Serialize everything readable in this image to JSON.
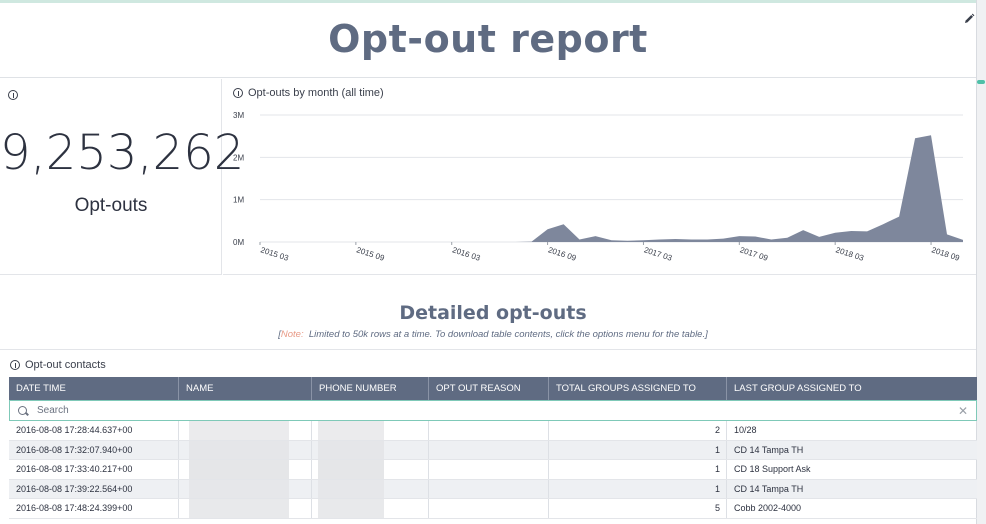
{
  "header": {
    "title": "Opt-out report"
  },
  "kpi": {
    "value": "9,253,262",
    "label": "Opt-outs"
  },
  "chart": {
    "title": "Opt-outs by month (all time)",
    "y_ticks": [
      "3M",
      "2M",
      "1M",
      "0M"
    ],
    "x_ticks": [
      "2015 03",
      "2015 09",
      "2016 03",
      "2016 09",
      "2017 03",
      "2017 09",
      "2018 03",
      "2018 09"
    ]
  },
  "chart_data": {
    "type": "area",
    "title": "Opt-outs by month (all time)",
    "xlabel": "",
    "ylabel": "",
    "ylim": [
      0,
      3000000
    ],
    "x_ticks": [
      "2015 03",
      "2015 09",
      "2016 03",
      "2016 09",
      "2017 03",
      "2017 09",
      "2018 03",
      "2018 09"
    ],
    "grid": true,
    "x": [
      "2015 03",
      "2015 04",
      "2015 05",
      "2015 06",
      "2015 07",
      "2015 08",
      "2015 09",
      "2015 10",
      "2015 11",
      "2015 12",
      "2016 01",
      "2016 02",
      "2016 03",
      "2016 04",
      "2016 05",
      "2016 06",
      "2016 07",
      "2016 08",
      "2016 09",
      "2016 10",
      "2016 11",
      "2016 12",
      "2017 01",
      "2017 02",
      "2017 03",
      "2017 04",
      "2017 05",
      "2017 06",
      "2017 07",
      "2017 08",
      "2017 09",
      "2017 10",
      "2017 11",
      "2017 12",
      "2018 01",
      "2018 02",
      "2018 03",
      "2018 04",
      "2018 05",
      "2018 06",
      "2018 07",
      "2018 08",
      "2018 09",
      "2018 10",
      "2018 11"
    ],
    "values": [
      0,
      0,
      0,
      0,
      0,
      0,
      0,
      0,
      0,
      0,
      0,
      0,
      0,
      0,
      0,
      0,
      0,
      10000,
      300000,
      420000,
      60000,
      140000,
      40000,
      30000,
      40000,
      60000,
      70000,
      60000,
      60000,
      80000,
      140000,
      130000,
      60000,
      100000,
      280000,
      120000,
      220000,
      260000,
      250000,
      420000,
      600000,
      2450000,
      2520000,
      180000,
      50000
    ]
  },
  "section": {
    "title": "Detailed opt-outs",
    "note_label": "Note:",
    "note_text": "Limited to 50k rows at a time. To download table contents, click the options menu for the table."
  },
  "table": {
    "title": "Opt-out contacts",
    "columns": [
      "DATE TIME",
      "NAME",
      "PHONE NUMBER",
      "OPT OUT REASON",
      "TOTAL GROUPS ASSIGNED TO",
      "LAST GROUP ASSIGNED TO"
    ],
    "search_placeholder": "Search",
    "rows": [
      {
        "datetime": "2016-08-08 17:28:44.637+00",
        "name": "",
        "phone": "",
        "reason": "",
        "total": "2",
        "last": "10/28"
      },
      {
        "datetime": "2016-08-08 17:32:07.940+00",
        "name": "",
        "phone": "",
        "reason": "",
        "total": "1",
        "last": "CD 14 Tampa TH"
      },
      {
        "datetime": "2016-08-08 17:33:40.217+00",
        "name": "",
        "phone": "",
        "reason": "",
        "total": "1",
        "last": "CD 18 Support Ask"
      },
      {
        "datetime": "2016-08-08 17:39:22.564+00",
        "name": "",
        "phone": "",
        "reason": "",
        "total": "1",
        "last": "CD 14 Tampa TH"
      },
      {
        "datetime": "2016-08-08 17:48:24.399+00",
        "name": "",
        "phone": "",
        "reason": "",
        "total": "5",
        "last": "Cobb 2002-4000"
      }
    ]
  },
  "colors": {
    "accent": "#5f6b82",
    "header_bg": "#5f6b82",
    "area_fill": "#7e879c",
    "teal": "#4fc0a8"
  }
}
